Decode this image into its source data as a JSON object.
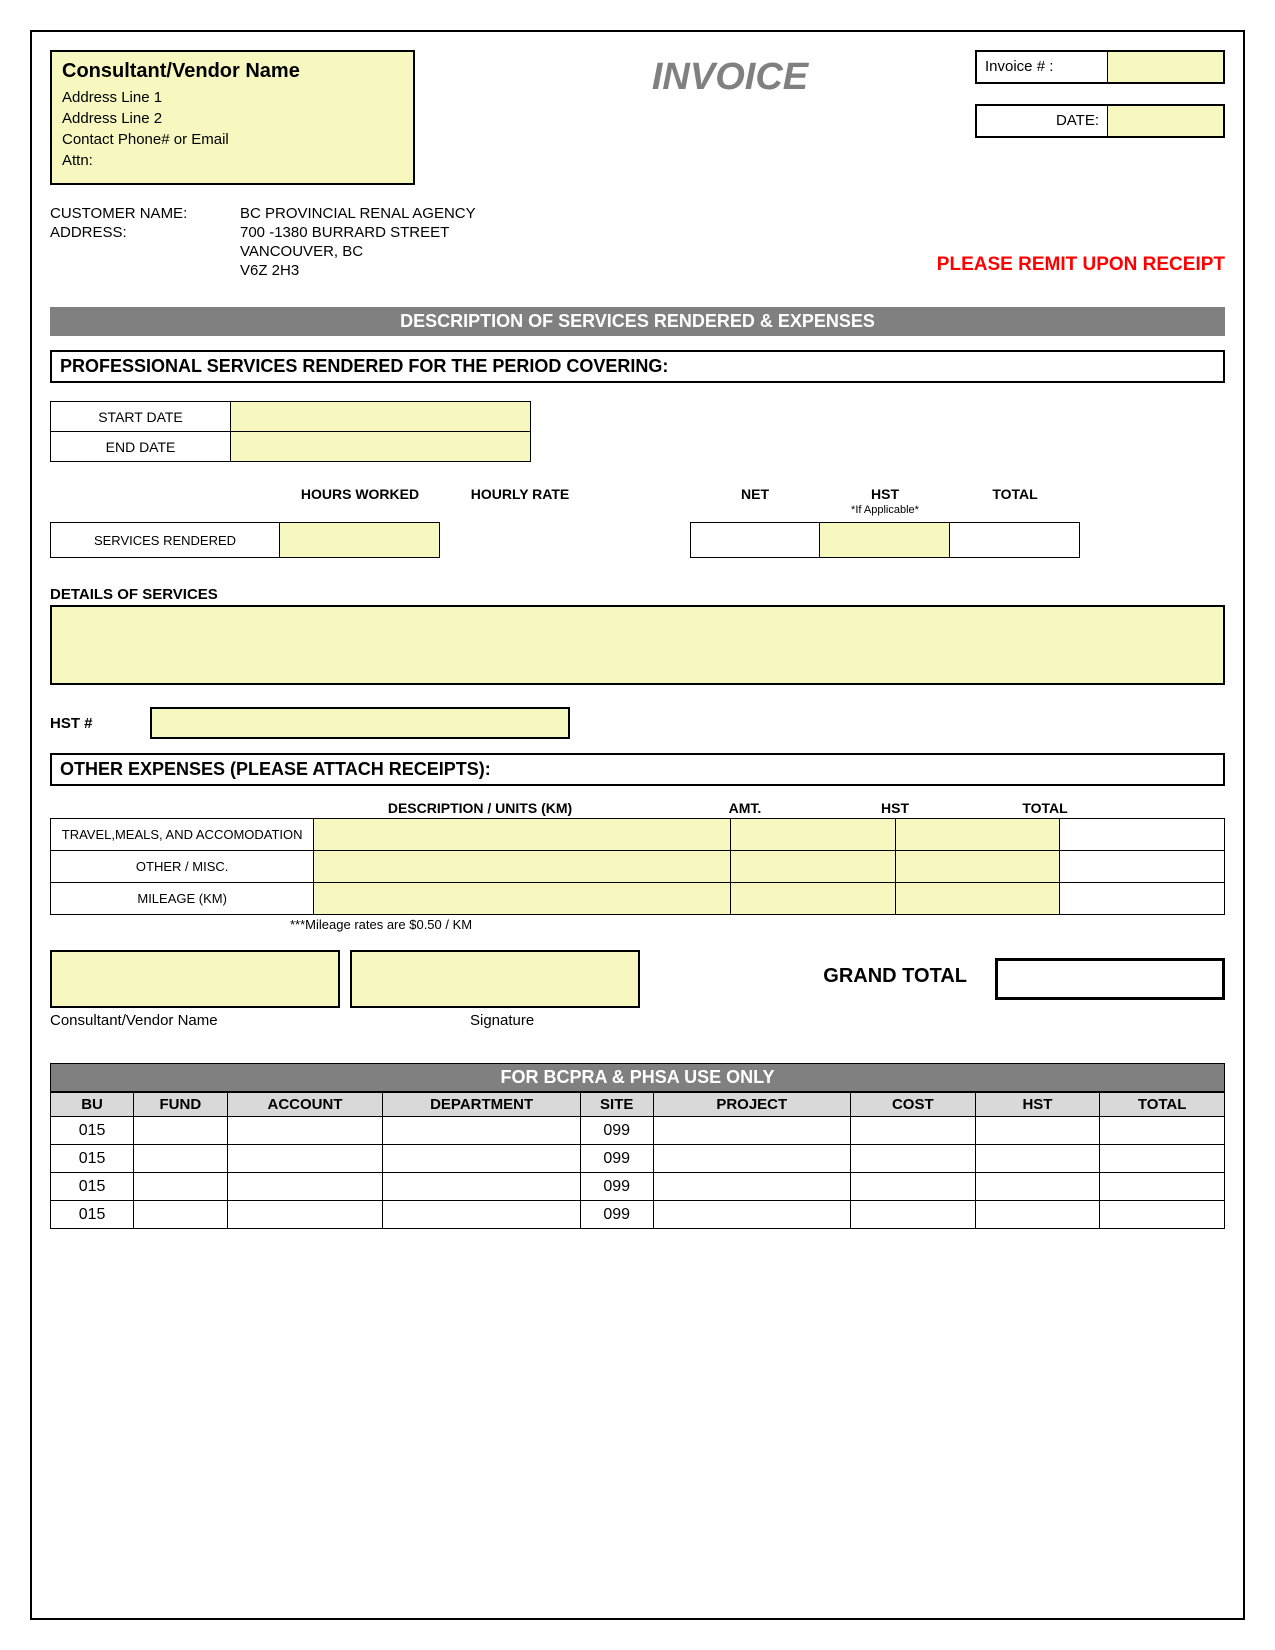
{
  "colors": {
    "fill": "#f7f8c0",
    "banner": "#808080",
    "remit": "#ff0000",
    "header_bg": "#d9d9d9"
  },
  "title": "INVOICE",
  "vendor": {
    "name_label": "Consultant/Vendor Name",
    "addr1": "Address Line 1",
    "addr2": "Address Line 2",
    "contact": "Contact Phone# or Email",
    "attn": "Attn:"
  },
  "meta": {
    "invoice_num_label": "Invoice # :",
    "date_label": "DATE:"
  },
  "customer": {
    "name_label": "CUSTOMER NAME:",
    "address_label": "ADDRESS:",
    "name": "BC PROVINCIAL RENAL AGENCY",
    "addr1": "700 -1380 BURRARD STREET",
    "addr2": "VANCOUVER, BC",
    "addr3": "V6Z 2H3"
  },
  "remit": "PLEASE REMIT UPON RECEIPT",
  "banner1": "DESCRIPTION OF SERVICES RENDERED & EXPENSES",
  "section1": "PROFESSIONAL SERVICES RENDERED FOR THE PERIOD COVERING:",
  "dates": {
    "start": "START DATE",
    "end": "END DATE"
  },
  "svc_headers": {
    "hours": "HOURS WORKED",
    "rate": "HOURLY RATE",
    "net": "NET",
    "hst": "HST",
    "total": "TOTAL",
    "appl": "*If Applicable*"
  },
  "svc_row_label": "SERVICES RENDERED",
  "details_label": "DETAILS OF SERVICES",
  "hst_label": "HST #",
  "section2": "OTHER EXPENSES (PLEASE ATTACH RECEIPTS):",
  "exp_headers": {
    "desc": "DESCRIPTION / UNITS (KM)",
    "amt": "AMT.",
    "hst": "HST",
    "total": "TOTAL"
  },
  "exp_rows": {
    "r1": "TRAVEL,MEALS, AND ACCOMODATION",
    "r2": "OTHER / MISC.",
    "r3": "MILEAGE (KM)"
  },
  "mileage_note": "***Mileage rates are $0.50 / KM",
  "sig": {
    "c1": "Consultant/Vendor Name",
    "c2": "Signature"
  },
  "grand_total_label": "GRAND TOTAL",
  "use_banner": "FOR BCPRA & PHSA USE ONLY",
  "use_headers": {
    "bu": "BU",
    "fund": "FUND",
    "acct": "ACCOUNT",
    "dept": "DEPARTMENT",
    "site": "SITE",
    "proj": "PROJECT",
    "cost": "COST",
    "hst": "HST",
    "total": "TOTAL"
  },
  "use_rows": [
    {
      "bu": "015",
      "site": "099"
    },
    {
      "bu": "015",
      "site": "099"
    },
    {
      "bu": "015",
      "site": "099"
    },
    {
      "bu": "015",
      "site": "099"
    }
  ]
}
